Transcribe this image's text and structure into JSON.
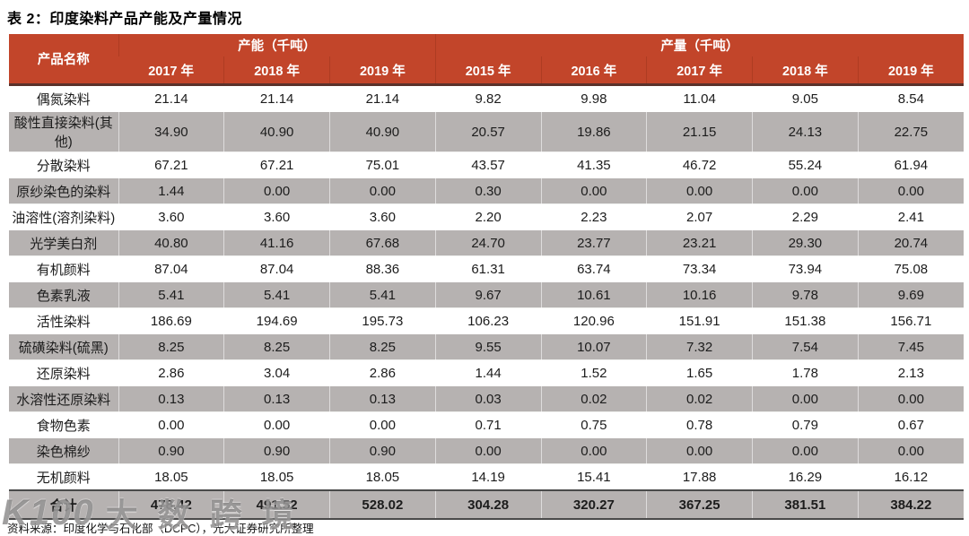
{
  "title": "表 2：印度染料产品产能及产量情况",
  "table": {
    "product_col_header": "产品名称",
    "groups": [
      {
        "label": "产能（千吨）",
        "years": [
          "2017 年",
          "2018 年",
          "2019 年"
        ]
      },
      {
        "label": "产量（千吨）",
        "years": [
          "2015 年",
          "2016 年",
          "2017 年",
          "2018 年",
          "2019 年"
        ]
      }
    ],
    "rows": [
      {
        "name": "偶氮染料",
        "values": [
          "21.14",
          "21.14",
          "21.14",
          "9.82",
          "9.98",
          "11.04",
          "9.05",
          "8.54"
        ]
      },
      {
        "name": "酸性直接染料(其他)",
        "values": [
          "34.90",
          "40.90",
          "40.90",
          "20.57",
          "19.86",
          "21.15",
          "24.13",
          "22.75"
        ]
      },
      {
        "name": "分散染料",
        "values": [
          "67.21",
          "67.21",
          "75.01",
          "43.57",
          "41.35",
          "46.72",
          "55.24",
          "61.94"
        ]
      },
      {
        "name": "原纱染色的染料",
        "values": [
          "1.44",
          "0.00",
          "0.00",
          "0.30",
          "0.00",
          "0.00",
          "0.00",
          "0.00"
        ]
      },
      {
        "name": "油溶性(溶剂染料)",
        "values": [
          "3.60",
          "3.60",
          "3.60",
          "2.20",
          "2.23",
          "2.07",
          "2.29",
          "2.41"
        ]
      },
      {
        "name": "光学美白剂",
        "values": [
          "40.80",
          "41.16",
          "67.68",
          "24.70",
          "23.77",
          "23.21",
          "29.30",
          "20.74"
        ]
      },
      {
        "name": "有机颜料",
        "values": [
          "87.04",
          "87.04",
          "88.36",
          "61.31",
          "63.74",
          "73.34",
          "73.94",
          "75.08"
        ]
      },
      {
        "name": "色素乳液",
        "values": [
          "5.41",
          "5.41",
          "5.41",
          "9.67",
          "10.61",
          "10.16",
          "9.78",
          "9.69"
        ]
      },
      {
        "name": "活性染料",
        "values": [
          "186.69",
          "194.69",
          "195.73",
          "106.23",
          "120.96",
          "151.91",
          "151.38",
          "156.71"
        ]
      },
      {
        "name": "硫磺染料(硫黑)",
        "values": [
          "8.25",
          "8.25",
          "8.25",
          "9.55",
          "10.07",
          "7.32",
          "7.54",
          "7.45"
        ]
      },
      {
        "name": "还原染料",
        "values": [
          "2.86",
          "3.04",
          "2.86",
          "1.44",
          "1.52",
          "1.65",
          "1.78",
          "2.13"
        ]
      },
      {
        "name": "水溶性还原染料",
        "values": [
          "0.13",
          "0.13",
          "0.13",
          "0.03",
          "0.02",
          "0.02",
          "0.00",
          "0.00"
        ]
      },
      {
        "name": "食物色素",
        "values": [
          "0.00",
          "0.00",
          "0.00",
          "0.71",
          "0.75",
          "0.78",
          "0.79",
          "0.67"
        ]
      },
      {
        "name": "染色棉纱",
        "values": [
          "0.90",
          "0.90",
          "0.90",
          "0.00",
          "0.00",
          "0.00",
          "0.00",
          "0.00"
        ]
      },
      {
        "name": "无机颜料",
        "values": [
          "18.05",
          "18.05",
          "18.05",
          "14.19",
          "15.41",
          "17.88",
          "16.29",
          "16.12"
        ]
      }
    ],
    "total_row": {
      "name": "合计",
      "values": [
        "478.42",
        "491.52",
        "528.02",
        "304.28",
        "320.27",
        "367.25",
        "381.51",
        "384.22"
      ]
    }
  },
  "footer": {
    "source": "资料来源：印度化学与石化部（DCPC），光大证券研究所整理"
  },
  "watermark": {
    "logo": "K100",
    "text": "大数跨境"
  },
  "colors": {
    "header_bg": "#C2452A",
    "stripe_bg": "#B6B2B1",
    "header_border": "#5A322B",
    "total_border": "#4A4A4A"
  }
}
